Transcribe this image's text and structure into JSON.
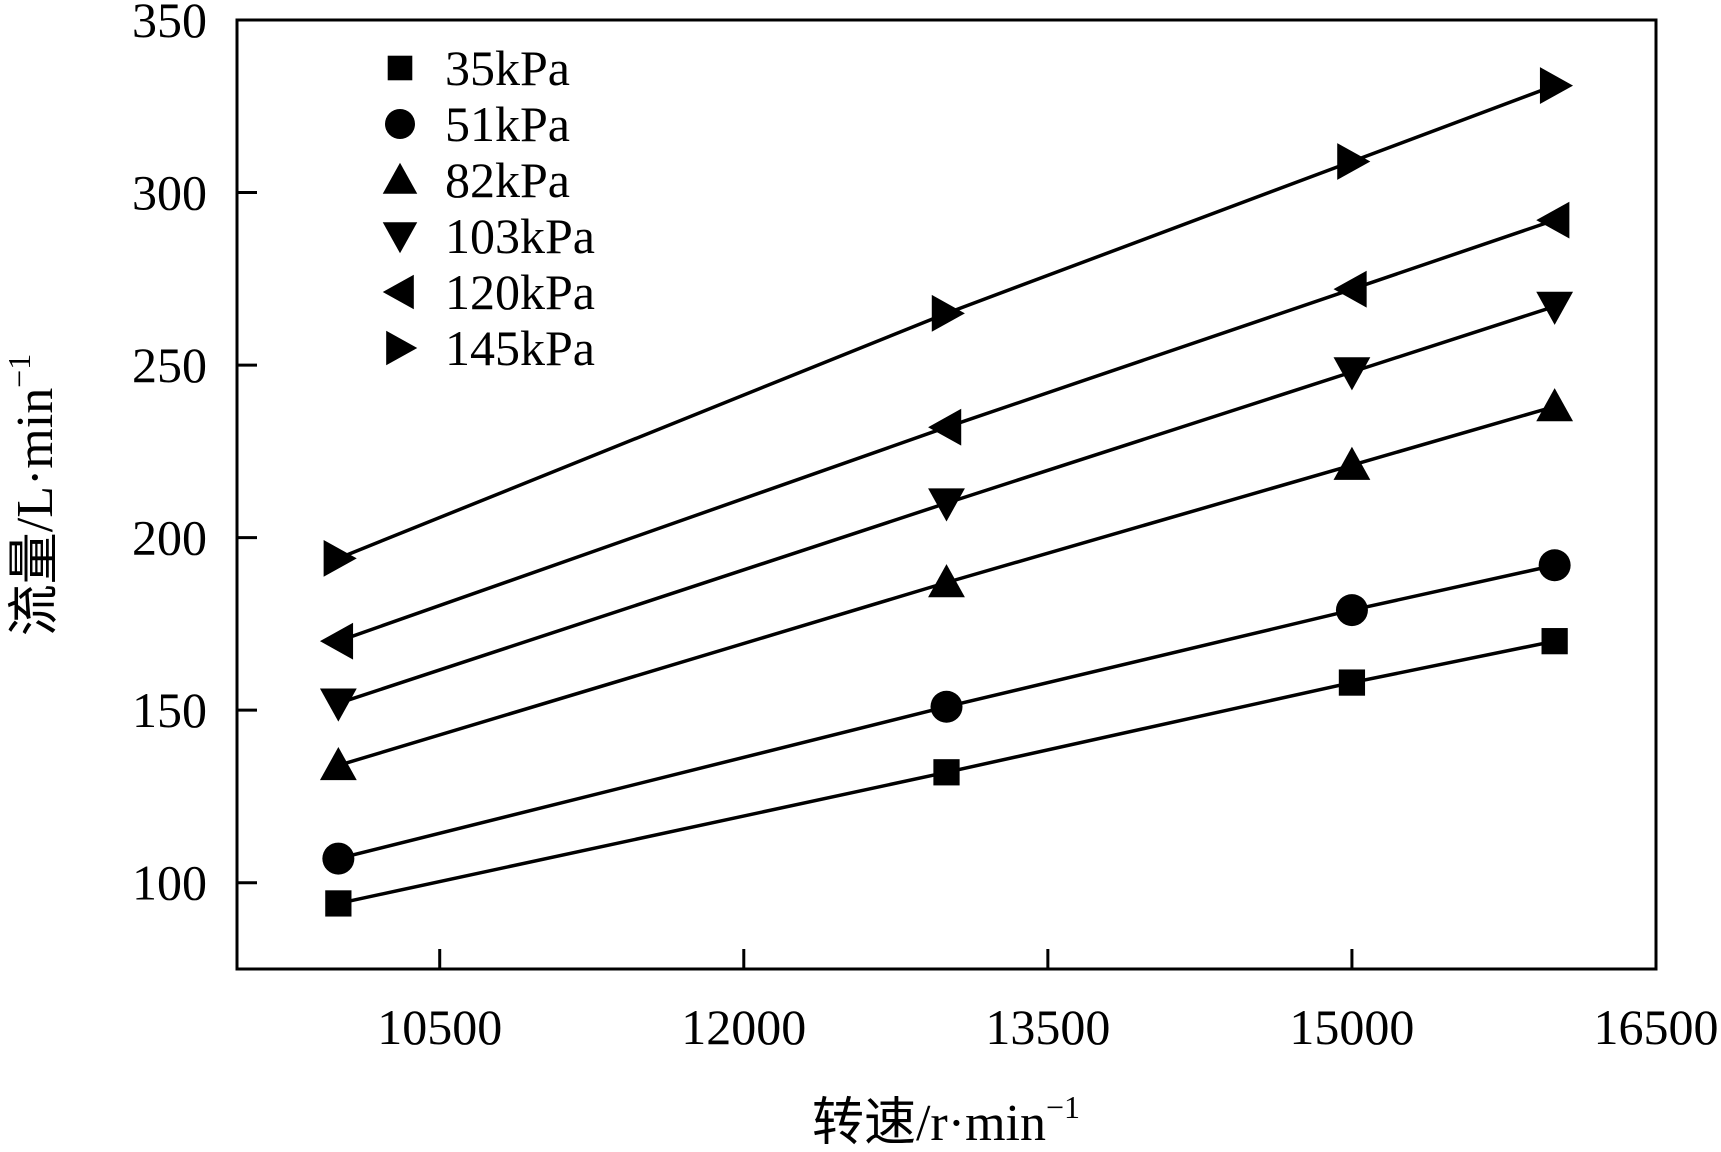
{
  "chart_data": {
    "type": "line",
    "xlabel": "转速/r·min",
    "xlabel_sup": "−1",
    "ylabel": "流量/L·min",
    "ylabel_sup": "−1",
    "xlim": [
      9500,
      16500
    ],
    "ylim": [
      75,
      350
    ],
    "x_ticks": [
      10500,
      12000,
      13500,
      15000,
      16500
    ],
    "y_ticks": [
      100,
      150,
      200,
      250,
      300,
      350
    ],
    "grid": false,
    "legend_position": "top-left",
    "x": [
      10000,
      13000,
      15000,
      16000
    ],
    "series": [
      {
        "name": "35kPa",
        "marker": "square",
        "values": [
          94,
          132,
          158,
          170
        ]
      },
      {
        "name": "51kPa",
        "marker": "circle",
        "values": [
          107,
          151,
          179,
          192
        ]
      },
      {
        "name": "82kPa",
        "marker": "triangle-up",
        "values": [
          134,
          187,
          221,
          238
        ]
      },
      {
        "name": "103kPa",
        "marker": "triangle-down",
        "values": [
          152,
          210,
          248,
          267
        ]
      },
      {
        "name": "120kPa",
        "marker": "triangle-left",
        "values": [
          170,
          232,
          272,
          292
        ]
      },
      {
        "name": "145kPa",
        "marker": "triangle-right",
        "values": [
          194,
          265,
          309,
          331
        ]
      }
    ],
    "colors": {
      "line": "#000000",
      "marker": "#000000"
    }
  }
}
